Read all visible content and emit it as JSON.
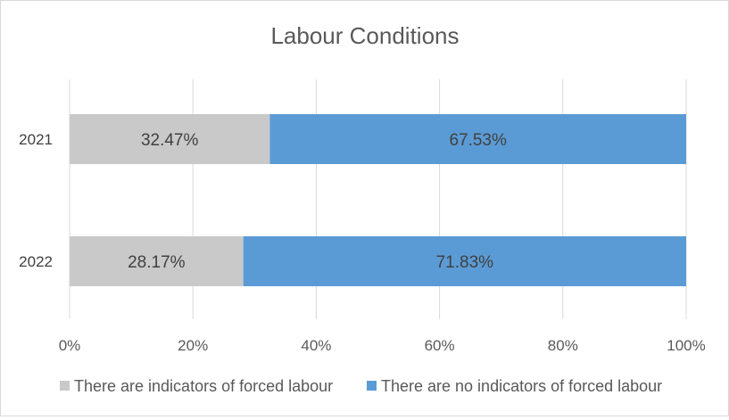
{
  "chart_data": {
    "type": "bar",
    "orientation": "horizontal",
    "stacked": "percent",
    "title": "Labour Conditions",
    "categories": [
      "2021",
      "2022"
    ],
    "series": [
      {
        "name": "There are indicators of forced labour",
        "values": [
          32.47,
          28.17
        ],
        "labels": [
          "32.47%",
          "28.17%"
        ],
        "color": "#c9c9c9"
      },
      {
        "name": "There are no indicators of forced labour",
        "values": [
          67.53,
          71.83
        ],
        "labels": [
          "67.53%",
          "71.83%"
        ],
        "color": "#5b9bd5"
      }
    ],
    "xlim": [
      0,
      100
    ],
    "xticks": [
      "0%",
      "20%",
      "40%",
      "60%",
      "80%",
      "100%"
    ],
    "grid": true,
    "legend": "bottom"
  }
}
